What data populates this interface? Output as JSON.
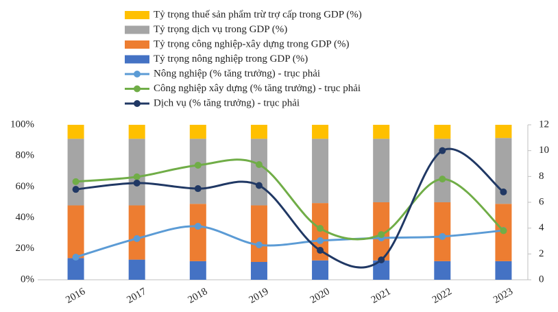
{
  "chart_data": {
    "type": "bar",
    "stacked": true,
    "categories": [
      "2016",
      "2017",
      "2018",
      "2019",
      "2020",
      "2021",
      "2022",
      "2023"
    ],
    "series": [
      {
        "name": "Tỷ trọng thuế sản phẩm trừ trợ cấp trong GDP (%)",
        "type": "bar",
        "color": "#FFC000",
        "values": [
          9,
          9,
          9,
          9,
          9,
          9,
          9,
          8.5
        ]
      },
      {
        "name": "Tỷ trọng dịch vụ trong GDP (%)",
        "type": "bar",
        "color": "#A5A5A5",
        "values": [
          43,
          43,
          42,
          43,
          41.5,
          41,
          41,
          42.5
        ]
      },
      {
        "name": "Tỷ trọng công nghiệp-xây dựng trong GDP (%)",
        "type": "bar",
        "color": "#ED7D31",
        "values": [
          34,
          35,
          37,
          36.5,
          37,
          37.5,
          38,
          37
        ]
      },
      {
        "name": "Tỷ trọng nông nghiệp trong GDP (%)",
        "type": "bar",
        "color": "#4472C4",
        "values": [
          14,
          13,
          12,
          11.5,
          12.5,
          12.5,
          12,
          12
        ]
      },
      {
        "name": "Nông nghiệp (% tăng trưởng) - trục phải",
        "type": "line",
        "axis": "y2",
        "color": "#5B9BD5",
        "values": [
          1.75,
          3.19,
          4.14,
          2.7,
          3.03,
          3.24,
          3.35,
          3.82
        ]
      },
      {
        "name": "Công nghiệp xây dựng (% tăng trưởng) - trục phải",
        "type": "line",
        "axis": "y2",
        "color": "#70AD47",
        "values": [
          7.6,
          7.97,
          8.87,
          8.92,
          3.98,
          3.5,
          7.8,
          3.8
        ]
      },
      {
        "name": "Dịch vụ (% tăng trưởng) - trục phải",
        "type": "line",
        "axis": "y2",
        "color": "#203864",
        "values": [
          7.0,
          7.49,
          7.06,
          7.3,
          2.28,
          1.54,
          10.0,
          6.8
        ]
      }
    ],
    "ylim": [
      0,
      100
    ],
    "yticks": [
      {
        "value": 0,
        "label": "0%"
      },
      {
        "value": 20,
        "label": "20%"
      },
      {
        "value": 40,
        "label": "40%"
      },
      {
        "value": 60,
        "label": "60%"
      },
      {
        "value": 80,
        "label": "80%"
      },
      {
        "value": 100,
        "label": "100%"
      }
    ],
    "y2lim": [
      0,
      12
    ],
    "y2ticks": [
      0,
      2,
      4,
      6,
      8,
      10,
      12
    ],
    "legend": "top"
  }
}
